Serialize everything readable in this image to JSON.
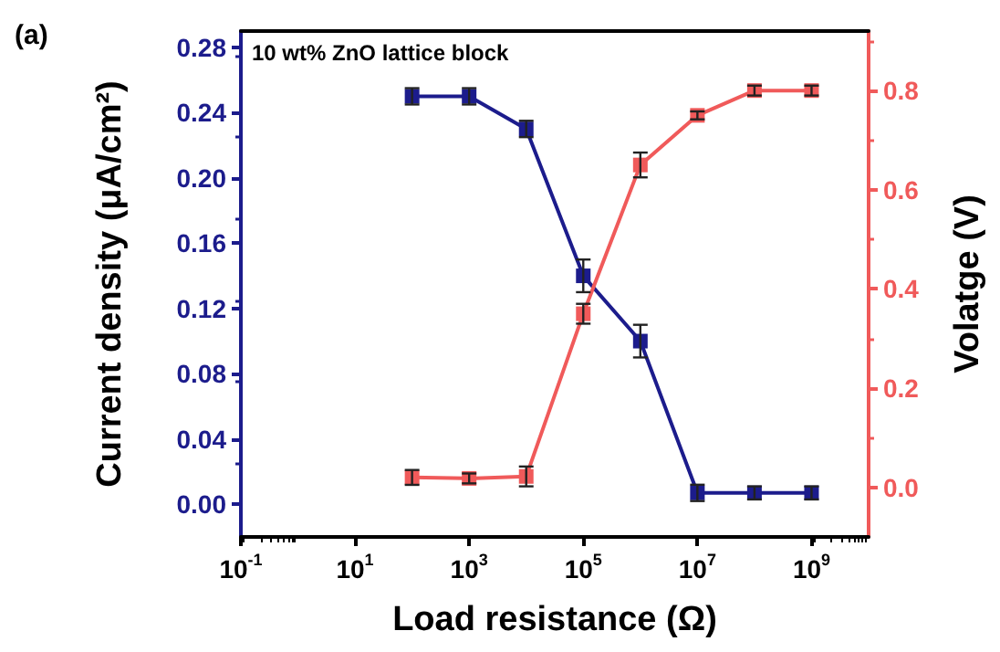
{
  "chart_data": {
    "type": "line",
    "title": "(a)",
    "annotations": [
      "10 wt% ZnO lattice block"
    ],
    "xlabel": "Load resistance (Ω)",
    "ylabel": "Current density (μA/cm²)",
    "y2label": "Volatge (V)",
    "log": "x",
    "x": [
      100,
      1000,
      10000,
      100000,
      1000000,
      10000000,
      100000000,
      1000000000
    ],
    "series": [
      {
        "color": "#1c1c8c",
        "values": [
          0.25,
          0.25,
          0.23,
          0.14,
          0.1,
          0.007,
          0.007,
          0.007
        ],
        "errors": [
          0.005,
          0.005,
          0.005,
          0.01,
          0.01,
          0.005,
          0.004,
          0.004
        ]
      },
      {
        "color": "#f05a5a",
        "axis": "y2",
        "values": [
          0.02,
          0.018,
          0.022,
          0.35,
          0.65,
          0.75,
          0.8,
          0.8
        ],
        "errors": [
          0.015,
          0.01,
          0.02,
          0.02,
          0.025,
          0.008,
          0.01,
          0.01
        ]
      }
    ],
    "xlim": [
      0.1,
      10000000000
    ],
    "xticks": [
      {
        "value": 0.1,
        "label": "10$^{-1}$"
      },
      {
        "value": 10,
        "label": "10$^{1}$"
      },
      {
        "value": 1000,
        "label": "10$^{3}$"
      },
      {
        "value": 100000,
        "label": "10$^{5}$"
      },
      {
        "value": 10000000,
        "label": "10$^{7}$"
      },
      {
        "value": 1000000000,
        "label": "10$^{9}$"
      }
    ],
    "ylim": [
      -0.02,
      0.29
    ],
    "yticks": [
      {
        "value": 0,
        "label": "0.00"
      },
      0.04,
      0.08,
      0.12,
      0.16,
      {
        "value": 0.2,
        "label": "0.20"
      },
      0.24,
      0.28
    ],
    "y2lim": [
      -0.1,
      0.92
    ],
    "y2ticks": [
      {
        "value": 0,
        "label": "0.0"
      },
      0.2,
      0.4,
      0.6,
      0.8
    ],
    "marker": "square",
    "line_style": "solid"
  }
}
